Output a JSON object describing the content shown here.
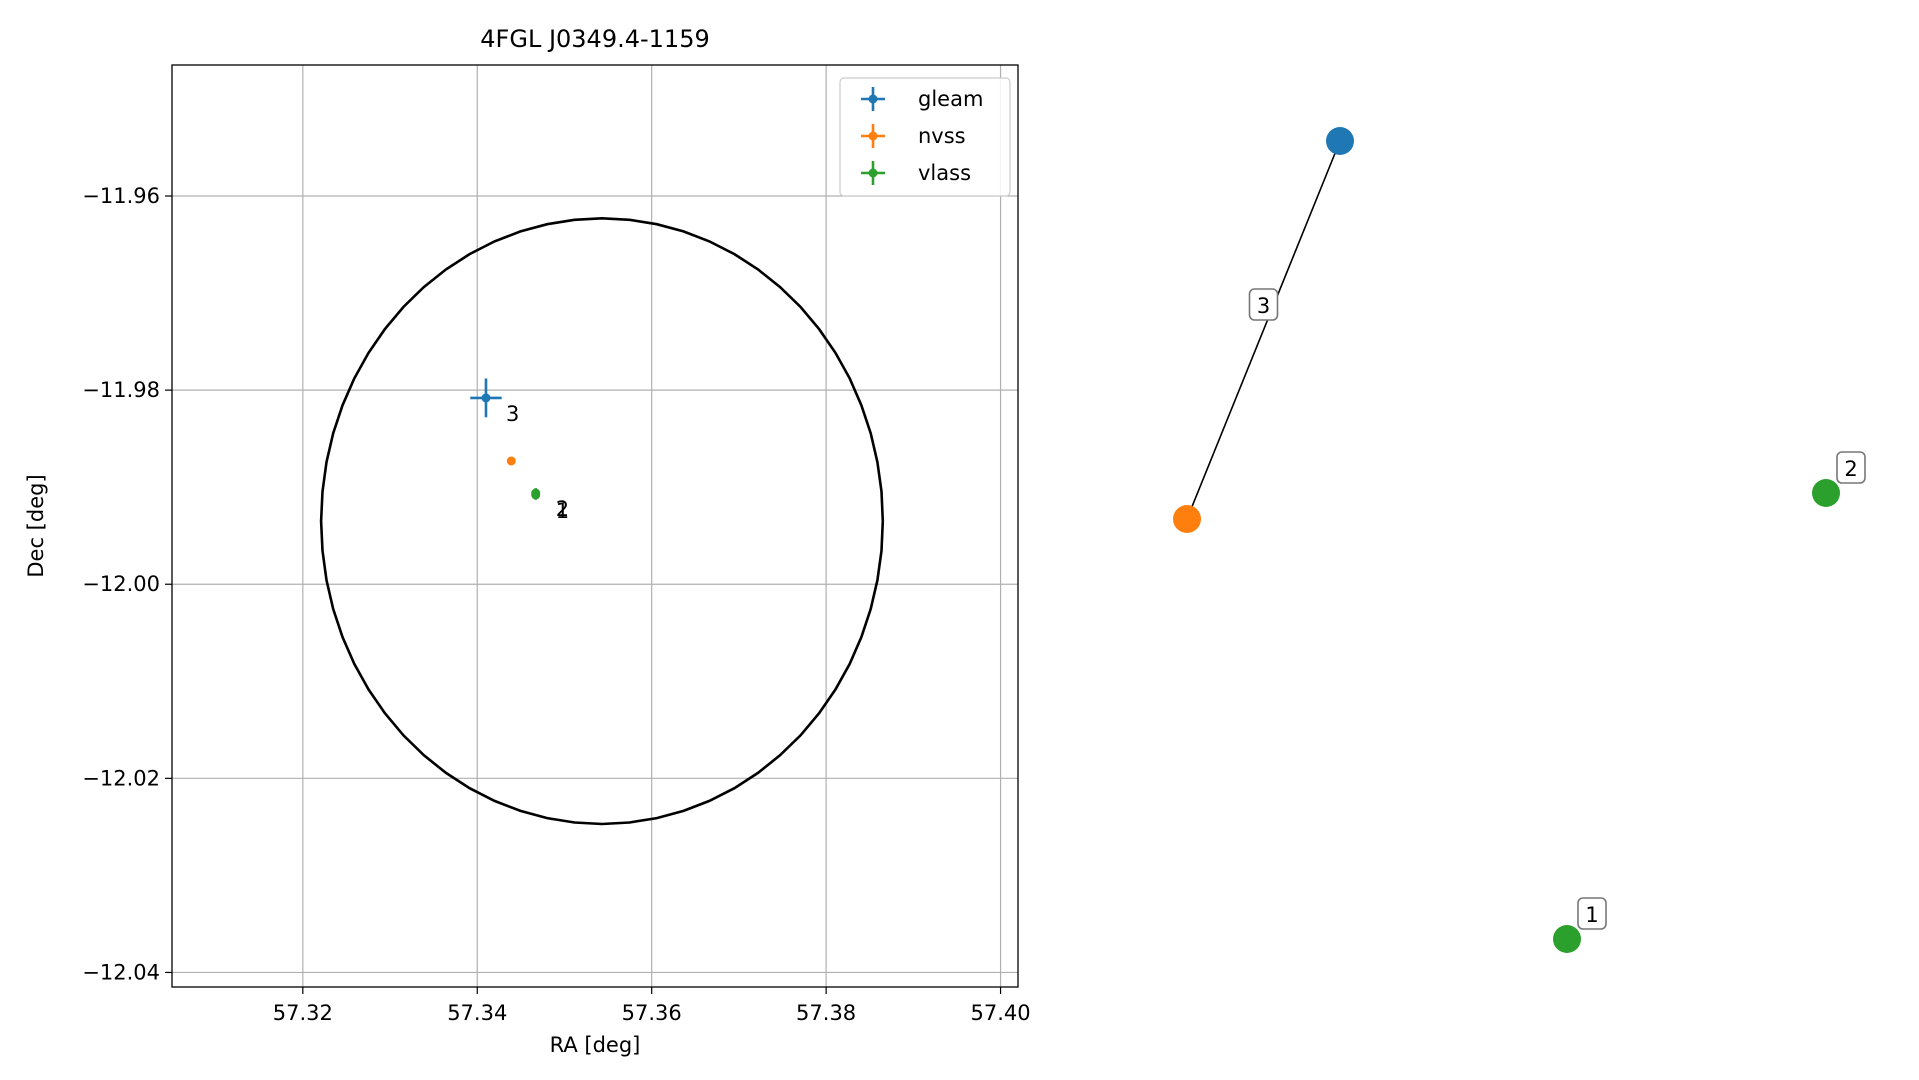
{
  "chart_data": [
    {
      "type": "scatter",
      "title": "4FGL J0349.4-1159",
      "xlabel": "RA [deg]",
      "ylabel": "Dec [deg]",
      "xlim": [
        57.305,
        57.402
      ],
      "ylim": [
        -12.0415,
        -11.9465
      ],
      "xticks": [
        57.32,
        57.34,
        57.36,
        57.38,
        57.4
      ],
      "xtick_labels": [
        "57.32",
        "57.34",
        "57.36",
        "57.38",
        "57.40"
      ],
      "yticks": [
        -11.96,
        -11.98,
        -12.0,
        -12.02,
        -12.04
      ],
      "ytick_labels": [
        "−11.96",
        "−11.98",
        "−12.00",
        "−12.02",
        "−12.04"
      ],
      "grid": true,
      "legend_position": "top-right",
      "series": [
        {
          "name": "gleam",
          "color": "#1f77b4",
          "points": [
            {
              "ra": 57.341,
              "dec": -11.9808,
              "ra_err": 0.0018,
              "dec_err": 0.002,
              "label": "3"
            }
          ]
        },
        {
          "name": "nvss",
          "color": "#ff7f0e",
          "points": [
            {
              "ra": 57.3439,
              "dec": -11.9873,
              "ra_err": 0.0003,
              "dec_err": 0.0003,
              "label": ""
            }
          ]
        },
        {
          "name": "vlass",
          "color": "#2ca02c",
          "points": [
            {
              "ra": 57.3467,
              "dec": -11.9908,
              "ra_err": 0.0002,
              "dec_err": 0.0005,
              "label": "1"
            },
            {
              "ra": 57.3467,
              "dec": -11.9906,
              "ra_err": 0.0002,
              "dec_err": 0.0005,
              "label": "2"
            }
          ]
        }
      ],
      "ellipse": {
        "center_ra": 57.3543,
        "center_dec": -11.9935,
        "semi_ra": 0.0322,
        "semi_dec": 0.0312,
        "color": "#000000"
      }
    },
    {
      "type": "network",
      "nodes": [
        {
          "id": "gleam",
          "color": "#1f77b4",
          "label": ""
        },
        {
          "id": "nvss",
          "color": "#ff7f0e",
          "label": ""
        },
        {
          "id": "vlass_2",
          "color": "#2ca02c",
          "label": "2"
        },
        {
          "id": "vlass_1",
          "color": "#2ca02c",
          "label": "1"
        }
      ],
      "edges": [
        {
          "source": "gleam",
          "target": "nvss",
          "label": "3"
        }
      ]
    }
  ]
}
